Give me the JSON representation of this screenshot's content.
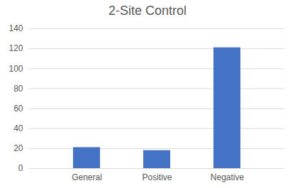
{
  "chart_data": {
    "type": "bar",
    "title": "2-Site Control",
    "categories": [
      "General",
      "Positive",
      "Negative"
    ],
    "values": [
      21,
      18,
      121
    ],
    "color": "#4472c4",
    "ylim": [
      0,
      140
    ],
    "yticks": [
      0,
      20,
      40,
      60,
      80,
      100,
      120,
      140
    ],
    "grid": true
  }
}
